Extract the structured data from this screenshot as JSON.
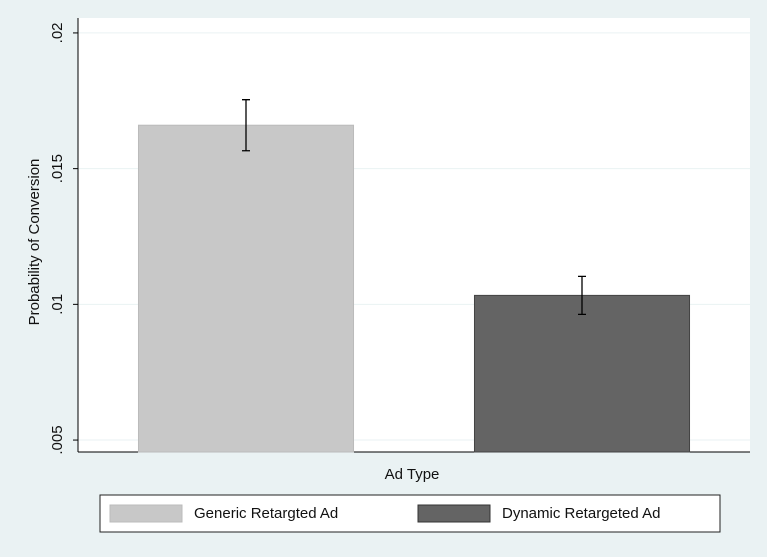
{
  "chart_data": {
    "type": "bar",
    "y_label": "Probability of Conversion",
    "x_label": "Ad Type",
    "series": [
      {
        "name": "Generic Retargted Ad",
        "color": "#c8c8c8",
        "values": [
          0.0166
        ],
        "errors": [
          0.00094
        ]
      },
      {
        "name": "Dynamic Retargeted Ad",
        "color": "#646464",
        "values": [
          0.01033
        ],
        "errors": [
          0.0007
        ]
      }
    ],
    "ylim": [
      0.00456,
      0.02055
    ],
    "yticks": [
      {
        "value": 0.005,
        "label": ".005"
      },
      {
        "value": 0.01,
        "label": ".01"
      },
      {
        "value": 0.015,
        "label": ".015"
      },
      {
        "value": 0.02,
        "label": ".02"
      }
    ],
    "grid": true,
    "legend": "bottom"
  }
}
